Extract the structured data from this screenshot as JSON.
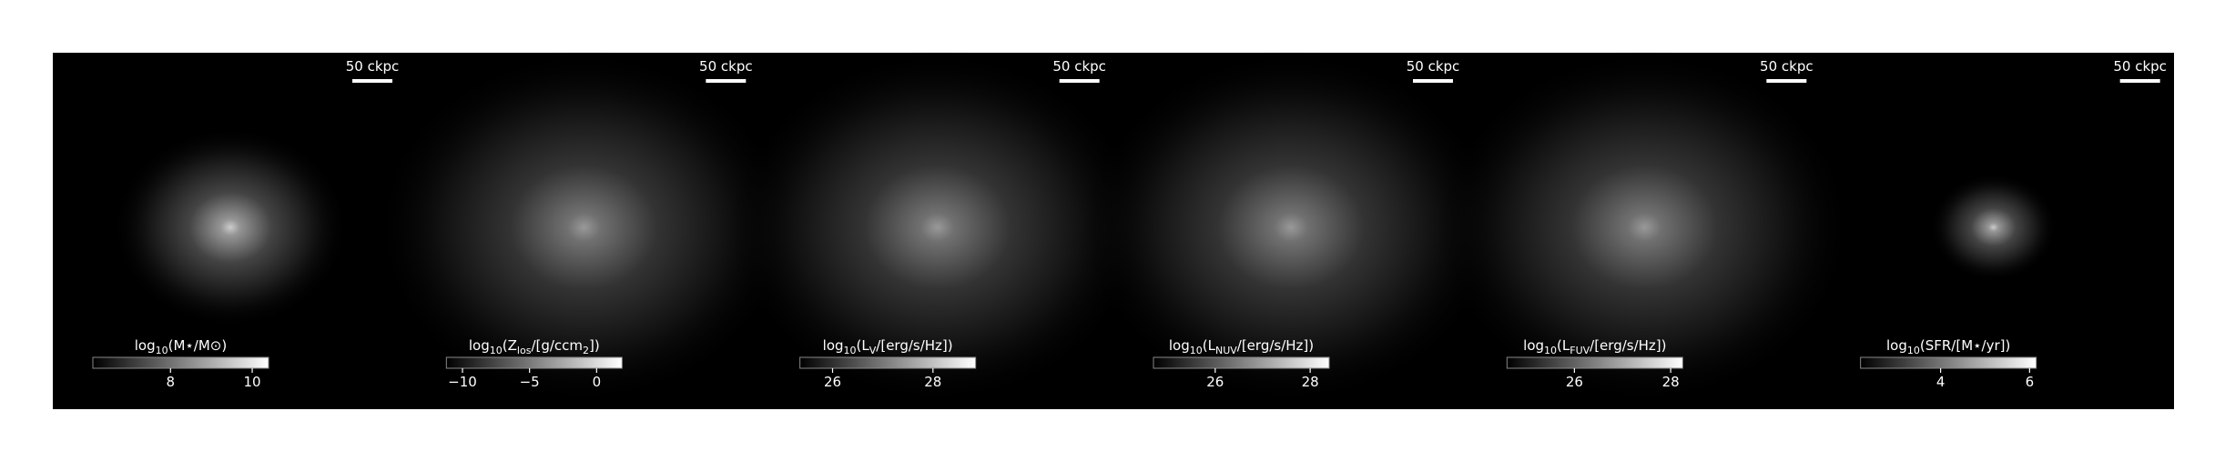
{
  "chart_data": [
    {
      "type": "image",
      "scalebar": "50 ckpc",
      "colorbar": {
        "label": [
          "log",
          "10",
          "(M⋆/M⊙)"
        ],
        "lim": [
          6.1,
          10.4
        ],
        "ticks": [
          8,
          10
        ]
      }
    },
    {
      "type": "image",
      "scalebar": "50 ckpc",
      "colorbar": {
        "label": [
          "log",
          "10",
          "(Z",
          "los",
          "/[g/ccm",
          "2",
          "])"
        ],
        "lim": [
          -11.2,
          1.9
        ],
        "ticks": [
          {
            "value": -10,
            "label": "−10"
          },
          {
            "value": -5,
            "label": "−5"
          },
          0
        ]
      }
    },
    {
      "type": "image",
      "scalebar": "50 ckpc",
      "colorbar": {
        "label": [
          "log",
          "10",
          "(L",
          "V",
          "/[erg/s/Hz])"
        ],
        "lim": [
          25.35,
          28.85
        ],
        "ticks": [
          26,
          28
        ]
      }
    },
    {
      "type": "image",
      "scalebar": "50 ckpc",
      "colorbar": {
        "label": [
          "log",
          "10",
          "(L",
          "NUV",
          "/[erg/s/Hz])"
        ],
        "lim": [
          24.7,
          28.4
        ],
        "ticks": [
          26,
          28
        ]
      }
    },
    {
      "type": "image",
      "scalebar": "50 ckpc",
      "colorbar": {
        "label": [
          "log",
          "10",
          "(L",
          "FUV",
          "/[erg/s/Hz])"
        ],
        "lim": [
          24.6,
          28.25
        ],
        "ticks": [
          26,
          28
        ]
      }
    },
    {
      "type": "image",
      "scalebar": "50 ckpc",
      "colorbar": {
        "label": [
          "log",
          "10",
          "(SFR/[M⋆/yr])"
        ],
        "lim": [
          2.2,
          6.15
        ],
        "ticks": [
          4,
          6
        ]
      }
    }
  ]
}
